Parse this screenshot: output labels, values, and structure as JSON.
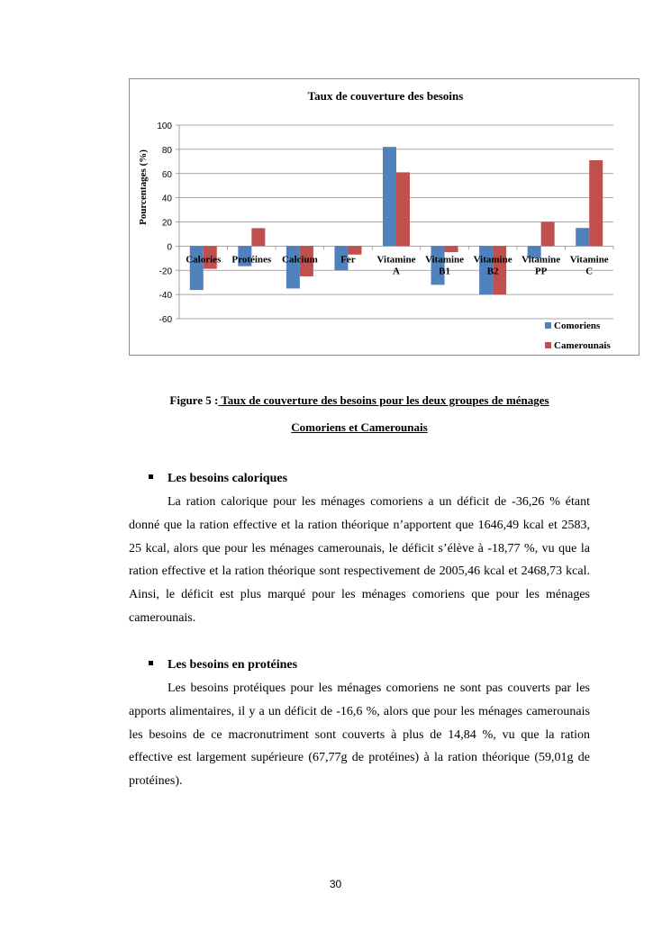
{
  "chart_data": {
    "type": "bar",
    "title": "Taux de couverture des besoins",
    "ylabel": "Pourcentages (%)",
    "xlabel": "",
    "categories": [
      [
        "Calories"
      ],
      [
        "Protéines"
      ],
      [
        "Calcium"
      ],
      [
        "Fer"
      ],
      [
        "Vitamine",
        "A"
      ],
      [
        "Vitamine",
        "B1"
      ],
      [
        "Vitamine",
        "B2"
      ],
      [
        "Vitamine",
        "PP"
      ],
      [
        "Vitamine",
        "C"
      ]
    ],
    "series": [
      {
        "name": "Comoriens",
        "color": "#4f81bd",
        "values": [
          -36.26,
          -16.6,
          -35,
          -20,
          82,
          -32,
          -40,
          -10,
          15
        ]
      },
      {
        "name": "Camerounais",
        "color": "#c0504d",
        "values": [
          -18.77,
          14.84,
          -25,
          -7,
          61,
          -5,
          -40,
          20,
          71
        ]
      }
    ],
    "ylim": [
      -60,
      100
    ],
    "yticks": [
      100,
      80,
      60,
      40,
      20,
      0,
      -20,
      -40,
      -60
    ],
    "grid": true,
    "legend_position": "bottom-right"
  },
  "caption": {
    "prefix": "Figure 5 :",
    "line1": " Taux de couverture des besoins pour les deux groupes de ménages",
    "line2": "Comoriens et Camerounais"
  },
  "section1": {
    "heading": "Les besoins caloriques",
    "paragraph": "La ration calorique pour les ménages comoriens a un déficit de -36,26 % étant donné que la ration effective et la ration théorique n’apportent que 1646,49 kcal et 2583, 25 kcal, alors que pour les ménages camerounais, le déficit s’élève à -18,77 %, vu que la ration effective et la ration théorique sont respectivement de 2005,46 kcal et 2468,73 kcal. Ainsi, le déficit est plus marqué pour les ménages comoriens que pour les ménages camerounais."
  },
  "section2": {
    "heading": "Les besoins en protéines",
    "paragraph": "Les besoins protéiques pour les ménages comoriens ne sont pas couverts par les apports alimentaires, il y a un déficit de -16,6 %, alors que pour les ménages camerounais les besoins de ce macronutriment sont couverts à plus de 14,84 %, vu que la ration effective est largement supérieure (67,77g de protéines) à la ration théorique (59,01g de protéines)."
  },
  "page_number": "30"
}
